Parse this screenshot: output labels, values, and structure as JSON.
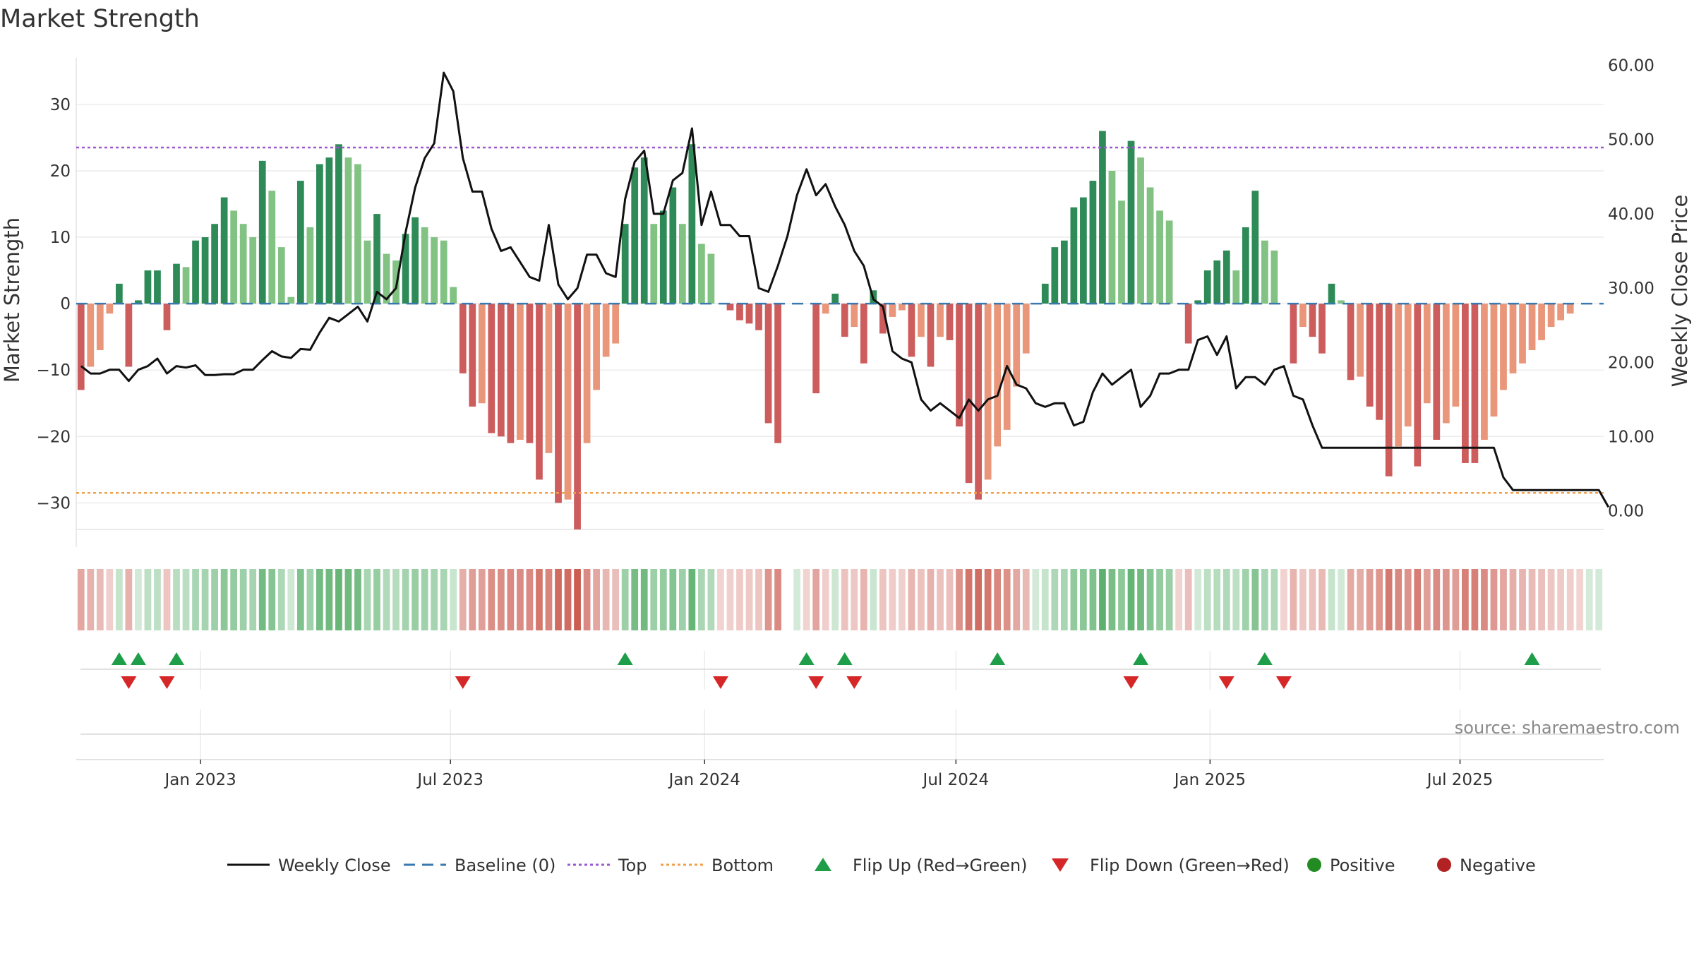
{
  "chart_data": {
    "type": "bar",
    "title": "Market Strength",
    "ylabel": "Market Strength",
    "y2label": "Weekly Close Price",
    "ylim": [
      -34,
      37
    ],
    "y2lim": [
      -2.5,
      61
    ],
    "yticks": [
      30,
      20,
      10,
      0,
      -10,
      -20,
      -30
    ],
    "ytick_labels": [
      "30",
      "20",
      "10",
      "0",
      "−10",
      "−20",
      "−30"
    ],
    "y2ticks": [
      60,
      50,
      40,
      30,
      20,
      10,
      0
    ],
    "y2tick_labels": [
      "60.00",
      "50.00",
      "40.00",
      "30.00",
      "20.00",
      "10.00",
      "0.00"
    ],
    "x_start": "2022-10-03",
    "x_end": "2025-10-13",
    "xticks": [
      "2023-01-01",
      "2023-07-01",
      "2024-01-01",
      "2024-07-01",
      "2025-01-01",
      "2025-07-01"
    ],
    "xtick_labels": [
      "Jan 2023",
      "Jul 2023",
      "Jan 2024",
      "Jul 2024",
      "Jan 2025",
      "Jul 2025"
    ],
    "top_line": 23.5,
    "bottom_line": -28.5,
    "baseline": 0,
    "grid": true,
    "legend_position": "bottom-center",
    "colors": {
      "pos_dark": "#2e8b57",
      "pos_light": "#82c283",
      "neg_dark": "#cd5c5c",
      "neg_light": "#e9967a",
      "close_line": "#111111",
      "baseline": "#3a78b0",
      "top": "#9b59d0",
      "bottom": "#f0a04b",
      "flip_up": "#1f9e4a",
      "flip_down": "#d62728",
      "positive_dot": "#228b22",
      "negative_dot": "#b22222"
    },
    "strength": [
      -13,
      -9.5,
      -7,
      -1.5,
      3,
      -9.5,
      0.5,
      5,
      5,
      -4,
      6,
      5.5,
      9.5,
      10,
      12,
      16,
      14,
      12,
      10,
      21.5,
      17,
      8.5,
      1,
      18.5,
      11.5,
      21,
      22,
      24,
      22,
      21,
      9.5,
      13.5,
      7.5,
      6.5,
      10.5,
      13,
      11.5,
      10,
      9.5,
      2.5,
      -10.5,
      -15.5,
      -15,
      -19.5,
      -20,
      -21,
      -20.5,
      -21,
      -26.5,
      -22.5,
      -30,
      -29.5,
      -34,
      -21,
      -13,
      -8,
      -6,
      12,
      20.5,
      22,
      12,
      14,
      17.5,
      12,
      24,
      9,
      7.5,
      0,
      -1,
      -2.5,
      -3,
      -4,
      -18,
      -21,
      0,
      0,
      0,
      -13.5,
      -1.5,
      1.5,
      -5,
      -3.5,
      -9,
      2,
      -4.5,
      -2,
      -1,
      -8,
      -5,
      -9.5,
      -5,
      -5.5,
      -18.5,
      -27,
      -29.5,
      -26.5,
      -21.5,
      -19,
      -12.5,
      -7.5,
      0,
      3,
      8.5,
      9.5,
      14.5,
      16,
      18.5,
      26,
      20,
      15.5,
      24.5,
      22,
      17.5,
      14,
      12.5,
      0,
      -6,
      0.5,
      5,
      6.5,
      8,
      5,
      11.5,
      17,
      9.5,
      8,
      0,
      -9,
      -3.5,
      -5,
      -7.5,
      3,
      0.5,
      -11.5,
      -11,
      -15.5,
      -17.5,
      -26,
      -21.5,
      -18.5,
      -24.5,
      -15,
      -20.5,
      -18,
      -15.5,
      -24,
      -24,
      -20.5,
      -17,
      -13,
      -10.5,
      -9,
      -7,
      -5.5,
      -3.5,
      -2.5,
      -1.5,
      0,
      0,
      0
    ],
    "close": [
      19.5,
      18.5,
      18.5,
      19,
      19,
      17.5,
      19,
      19.5,
      20.5,
      18.5,
      19.5,
      19.3,
      19.6,
      18.3,
      18.3,
      18.4,
      18.4,
      19,
      19,
      20.3,
      21.5,
      20.8,
      20.6,
      21.8,
      21.7,
      24,
      26,
      25.5,
      26.5,
      27.5,
      25.5,
      29.5,
      28.5,
      30,
      37.5,
      43.5,
      47.5,
      49.5,
      59,
      56.5,
      47.5,
      43,
      43,
      38,
      35,
      35.5,
      33.5,
      31.5,
      31,
      38.5,
      30.5,
      28.5,
      30,
      34.5,
      34.5,
      32,
      31.5,
      42,
      47,
      48.5,
      40,
      40,
      44.5,
      45.5,
      51.5,
      38.5,
      43,
      38.5,
      38.5,
      37,
      37,
      30,
      29.5,
      33,
      37,
      42.5,
      46,
      42.5,
      44,
      41,
      38.5,
      35,
      33,
      28.5,
      27.5,
      21.5,
      20.5,
      20,
      15,
      13.5,
      14.5,
      13.5,
      12.5,
      15,
      13.5,
      15,
      15.5,
      19.5,
      17,
      16.5,
      14.5,
      14,
      14.5,
      14.5,
      11.5,
      12,
      16,
      18.5,
      17,
      18,
      19,
      14,
      15.5,
      18.5,
      18.5,
      19,
      19,
      23,
      23.5,
      21,
      23.5,
      16.5,
      18,
      18,
      17,
      19,
      19.5,
      15.5,
      15,
      11.5,
      8.5,
      8.5,
      8.5,
      8.5,
      8.5,
      8.5,
      8.5,
      8.5,
      8.5,
      8.5,
      8.5,
      8.5,
      8.5,
      8.5,
      8.5,
      8.5,
      8.5,
      8.5,
      8.5,
      4.5,
      2.8,
      2.8,
      2.8,
      2.8,
      2.8,
      2.8,
      2.8,
      2.8,
      2.8,
      2.8,
      0.5
    ],
    "flip_up_weeks": [
      4,
      6,
      10,
      57,
      76,
      80,
      96,
      111,
      124,
      152
    ],
    "flip_down_weeks": [
      5,
      9,
      40,
      67,
      77,
      81,
      110,
      120,
      126
    ],
    "legend": [
      {
        "label": "Weekly Close",
        "symbol": "solid-line",
        "color": "#111111"
      },
      {
        "label": "Baseline (0)",
        "symbol": "dashed-line",
        "color": "#3a78b0"
      },
      {
        "label": "Top",
        "symbol": "dotted-line",
        "color": "#9b59d0"
      },
      {
        "label": "Bottom",
        "symbol": "dotted-line",
        "color": "#f0a04b"
      },
      {
        "label": "Flip Up (Red→Green)",
        "symbol": "triangle-up",
        "color": "#1f9e4a"
      },
      {
        "label": "Flip Down (Green→Red)",
        "symbol": "triangle-down",
        "color": "#d62728"
      },
      {
        "label": "Positive",
        "symbol": "dot",
        "color": "#228b22"
      },
      {
        "label": "Negative",
        "symbol": "dot",
        "color": "#b22222"
      }
    ],
    "source": "source: sharemaestro.com"
  }
}
